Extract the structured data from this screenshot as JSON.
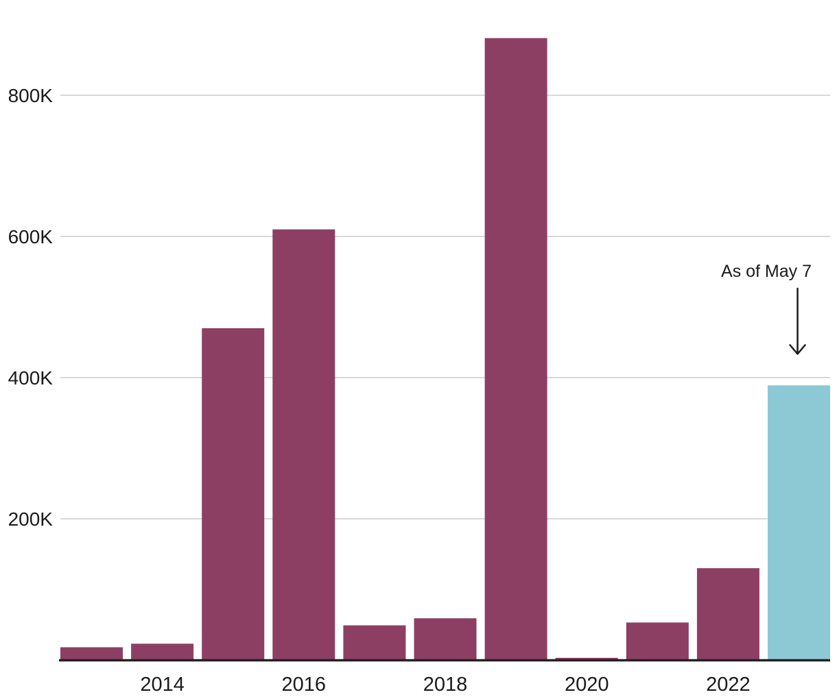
{
  "chart_data": {
    "type": "bar",
    "title": "",
    "xlabel": "",
    "ylabel": "",
    "categories": [
      "2013",
      "2014",
      "2015",
      "2016",
      "2017",
      "2018",
      "2019",
      "2020",
      "2021",
      "2022",
      "2023"
    ],
    "values": [
      18000,
      23000,
      470000,
      610000,
      49000,
      59000,
      881000,
      3000,
      53000,
      130000,
      389000
    ],
    "highlight_index": 10,
    "y_ticks": [
      {
        "value": 200000,
        "label": "200K"
      },
      {
        "value": 400000,
        "label": "400K"
      },
      {
        "value": 600000,
        "label": "600K"
      },
      {
        "value": 800000,
        "label": "800K"
      }
    ],
    "x_ticks": [
      {
        "index": 1,
        "label": "2014"
      },
      {
        "index": 3,
        "label": "2016"
      },
      {
        "index": 5,
        "label": "2018"
      },
      {
        "index": 7,
        "label": "2020"
      },
      {
        "index": 9,
        "label": "2022"
      }
    ],
    "ylim": [
      0,
      900000
    ],
    "grid": true,
    "legend": false,
    "annotation": {
      "text": "As of May 7",
      "target_category": "2023"
    },
    "colors": {
      "bar": "#8d3f63",
      "highlight": "#8dc9d5",
      "gridline": "#d9d9d9",
      "axis": "#222222",
      "text": "#1a1a1a"
    }
  }
}
